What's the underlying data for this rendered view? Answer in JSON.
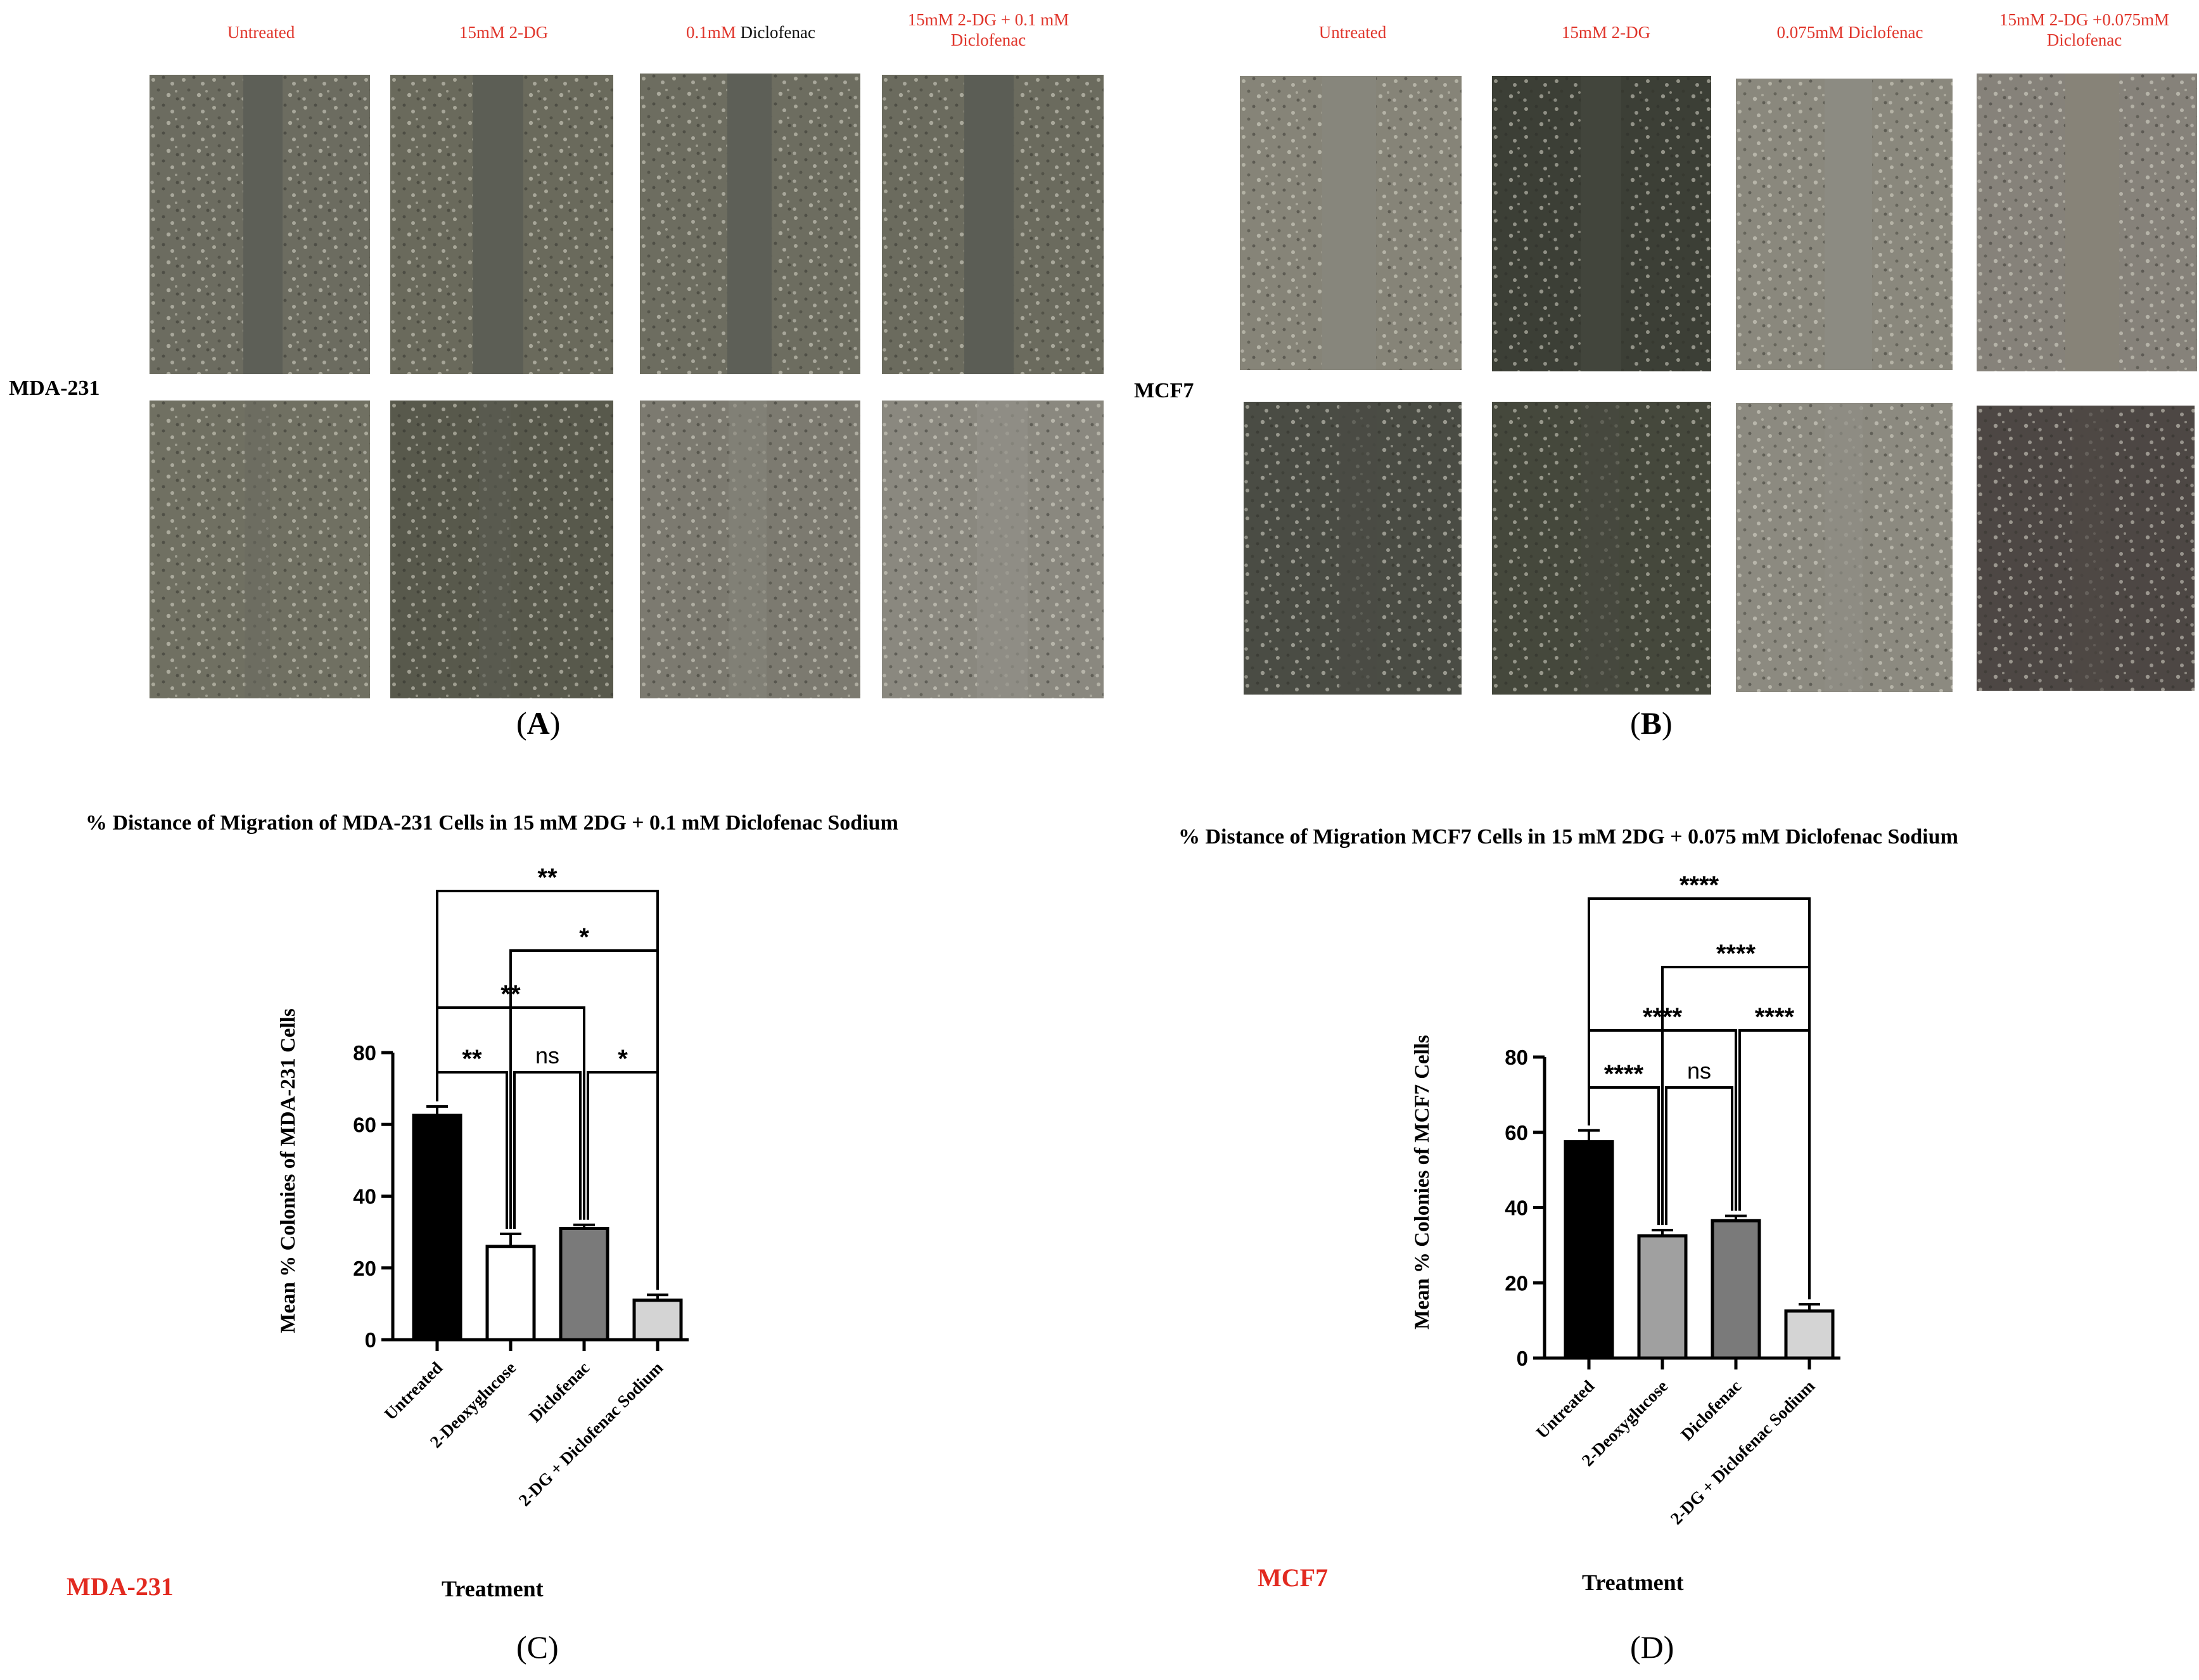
{
  "panel_a": {
    "cell_line": "MDA-231",
    "letter": "A",
    "conditions": [
      {
        "red": "Untreated",
        "black": ""
      },
      {
        "red": "15mM 2-DG",
        "black": ""
      },
      {
        "red": "0.1mM ",
        "black": "Diclofenac"
      },
      {
        "red": "15mM 2-DG + 0.1 mM Diclofenac",
        "black": ""
      }
    ]
  },
  "panel_b": {
    "cell_line": "MCF7",
    "letter": "B",
    "conditions": [
      {
        "red": "Untreated",
        "black": ""
      },
      {
        "red": "15mM 2-DG",
        "black": ""
      },
      {
        "red": "0.075mM Diclofenac",
        "black": ""
      },
      {
        "red": "15mM 2-DG +0.075mM Diclofenac",
        "black": ""
      }
    ]
  },
  "colors": {
    "condition_text": "#e0352b",
    "red_label": "#e22a20",
    "bar_black": "#000000",
    "bar_white": "#ffffff",
    "bar_dark_grey": "#7a7a7a",
    "bar_mid_grey": "#a0a0a0",
    "bar_light_grey": "#d4d4d4"
  },
  "panel_c": {
    "letter": "C",
    "red_label": "MDA-231",
    "treatment_label": "Treatment"
  },
  "panel_d": {
    "letter": "D",
    "red_label": "MCF7",
    "treatment_label": "Treatment"
  },
  "chart_data": [
    {
      "type": "bar",
      "title": "% Distance of Migration of MDA-231 Cells in 15 mM 2DG + 0.1 mM Diclofenac Sodium",
      "xlabel": "Treatment",
      "ylabel": "Mean % Colonies of MDA-231 Cells",
      "categories": [
        "Untreated",
        "2-Deoxyglucose",
        "Diclofenac",
        "2-DG + Diclofenac Sodium"
      ],
      "values": [
        62.5,
        26.0,
        31.0,
        11.0
      ],
      "errors": [
        2.5,
        3.5,
        1.0,
        1.5
      ],
      "bar_colors": [
        "#000000",
        "#ffffff",
        "#7a7a7a",
        "#d4d4d4"
      ],
      "ylim": [
        0,
        80
      ],
      "yticks": [
        0,
        20,
        40,
        60,
        80
      ],
      "grid": false,
      "comparisons": [
        {
          "from": 0,
          "to": 1,
          "label": "**"
        },
        {
          "from": 1,
          "to": 2,
          "label": "ns"
        },
        {
          "from": 2,
          "to": 3,
          "label": "*"
        },
        {
          "from": 0,
          "to": 2,
          "label": "**"
        },
        {
          "from": 1,
          "to": 3,
          "label": "*"
        },
        {
          "from": 0,
          "to": 3,
          "label": "**"
        }
      ]
    },
    {
      "type": "bar",
      "title": "% Distance of Migration MCF7 Cells in 15 mM 2DG + 0.075 mM Diclofenac Sodium",
      "xlabel": "Treatment",
      "ylabel": "Mean % Colonies of MCF7 Cells",
      "categories": [
        "Untreated",
        "2-Deoxyglucose",
        "Diclofenac",
        "2-DG + Diclofenac Sodium"
      ],
      "values": [
        57.5,
        32.5,
        36.5,
        12.5
      ],
      "errors": [
        3.0,
        1.5,
        1.3,
        1.8
      ],
      "bar_colors": [
        "#000000",
        "#a0a0a0",
        "#7a7a7a",
        "#d4d4d4"
      ],
      "ylim": [
        0,
        80
      ],
      "yticks": [
        0,
        20,
        40,
        60,
        80
      ],
      "grid": false,
      "comparisons": [
        {
          "from": 0,
          "to": 1,
          "label": "****"
        },
        {
          "from": 1,
          "to": 2,
          "label": "ns"
        },
        {
          "from": 2,
          "to": 3,
          "label": "****"
        },
        {
          "from": 0,
          "to": 2,
          "label": "****"
        },
        {
          "from": 1,
          "to": 3,
          "label": "****"
        },
        {
          "from": 0,
          "to": 3,
          "label": "****"
        }
      ]
    }
  ]
}
